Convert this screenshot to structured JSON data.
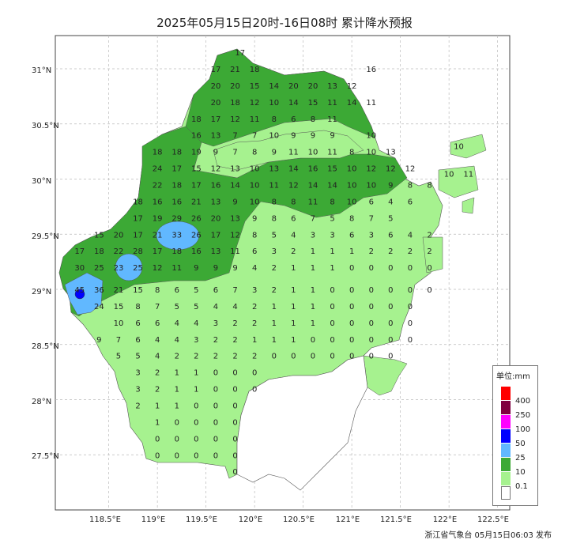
{
  "title": "2025年05月15日20时-16日08时 累计降水预报",
  "footer": "浙江省气象台 05月15日06:03 发布",
  "axes": {
    "y_ticks": [
      "31°N",
      "30.5°N",
      "30°N",
      "29.5°N",
      "29°N",
      "28.5°N",
      "28°N",
      "27.5°N"
    ],
    "x_ticks": [
      "118.5°E",
      "119°E",
      "119.5°E",
      "120°E",
      "120.5°E",
      "121°E",
      "121.5°E",
      "122°E",
      "122.5°E"
    ]
  },
  "legend": {
    "title": "单位:mm",
    "items": [
      {
        "label": "",
        "color": "#ff0000"
      },
      {
        "label": "400",
        "color": "#800040"
      },
      {
        "label": "250",
        "color": "#ff00ff"
      },
      {
        "label": "100",
        "color": "#0000ff"
      },
      {
        "label": "50",
        "color": "#61b8ff"
      },
      {
        "label": "25",
        "color": "#3ca935"
      },
      {
        "label": "10",
        "color": "#a6f28f"
      },
      {
        "label": "0.1",
        "color": "#ffffff"
      }
    ]
  },
  "colors": {
    "light_green": "#a6f28f",
    "green": "#3ca935",
    "light_blue": "#61b8ff",
    "blue": "#0000ff"
  },
  "station_rows": [
    {
      "lat": 31.15,
      "lon_start": 119.85,
      "values": [
        17
      ]
    },
    {
      "lat": 31.0,
      "lon_start": 119.6,
      "values": [
        17,
        21,
        18,
        null,
        null,
        null,
        null,
        null,
        16
      ]
    },
    {
      "lat": 30.85,
      "lon_start": 119.6,
      "values": [
        20,
        20,
        15,
        14,
        20,
        20,
        13,
        12
      ]
    },
    {
      "lat": 30.7,
      "lon_start": 119.6,
      "values": [
        20,
        18,
        12,
        10,
        14,
        15,
        11,
        14,
        11
      ]
    },
    {
      "lat": 30.55,
      "lon_start": 119.4,
      "values": [
        18,
        17,
        12,
        11,
        8,
        6,
        8,
        11
      ]
    },
    {
      "lat": 30.4,
      "lon_start": 119.4,
      "values": [
        16,
        13,
        7,
        7,
        10,
        9,
        9,
        9,
        null,
        10
      ]
    },
    {
      "lat": 30.25,
      "lon_start": 119.0,
      "values": [
        18,
        18,
        19,
        9,
        7,
        8,
        9,
        11,
        10,
        11,
        8,
        10,
        13
      ]
    },
    {
      "lat": 30.1,
      "lon_start": 119.0,
      "values": [
        24,
        17,
        15,
        12,
        13,
        10,
        13,
        14,
        16,
        15,
        10,
        12,
        12,
        12
      ]
    },
    {
      "lat": 29.95,
      "lon_start": 119.0,
      "values": [
        22,
        18,
        17,
        16,
        14,
        10,
        11,
        12,
        14,
        14,
        10,
        10,
        9,
        8,
        8
      ]
    },
    {
      "lat": 29.8,
      "lon_start": 118.8,
      "values": [
        18,
        16,
        16,
        21,
        13,
        9,
        10,
        8,
        8,
        11,
        8,
        10,
        6,
        4,
        6
      ]
    },
    {
      "lat": 29.65,
      "lon_start": 118.8,
      "values": [
        17,
        19,
        29,
        26,
        20,
        13,
        9,
        8,
        6,
        7,
        5,
        8,
        7,
        5
      ]
    },
    {
      "lat": 29.5,
      "lon_start": 118.4,
      "values": [
        15,
        20,
        17,
        21,
        33,
        26,
        17,
        12,
        8,
        5,
        4,
        3,
        3,
        6,
        3,
        6,
        4,
        2
      ]
    },
    {
      "lat": 29.35,
      "lon_start": 118.2,
      "values": [
        17,
        18,
        22,
        28,
        17,
        18,
        16,
        13,
        11,
        6,
        3,
        2,
        1,
        1,
        1,
        2,
        2,
        2,
        2
      ]
    },
    {
      "lat": 29.2,
      "lon_start": 118.2,
      "values": [
        30,
        25,
        23,
        25,
        12,
        11,
        9,
        9,
        9,
        4,
        2,
        1,
        1,
        1,
        0,
        0,
        0,
        0,
        0
      ]
    },
    {
      "lat": 29.0,
      "lon_start": 118.2,
      "values": [
        45,
        36,
        21,
        15,
        8,
        6,
        5,
        6,
        7,
        3,
        2,
        1,
        1,
        0,
        0,
        0,
        0,
        0,
        0
      ]
    },
    {
      "lat": 28.85,
      "lon_start": 118.4,
      "values": [
        24,
        15,
        8,
        7,
        5,
        5,
        4,
        4,
        2,
        1,
        1,
        1,
        0,
        0,
        0,
        0,
        0
      ]
    },
    {
      "lat": 28.7,
      "lon_start": 118.6,
      "values": [
        10,
        6,
        6,
        4,
        4,
        3,
        2,
        2,
        1,
        1,
        1,
        0,
        0,
        0,
        0,
        0
      ]
    },
    {
      "lat": 28.55,
      "lon_start": 118.4,
      "values": [
        9,
        7,
        6,
        4,
        4,
        3,
        2,
        2,
        1,
        1,
        1,
        0,
        0,
        0,
        0,
        0,
        0
      ]
    },
    {
      "lat": 28.4,
      "lon_start": 118.6,
      "values": [
        5,
        5,
        4,
        2,
        2,
        2,
        2,
        2,
        0,
        0,
        0,
        0,
        0,
        0,
        0
      ]
    },
    {
      "lat": 28.25,
      "lon_start": 118.8,
      "values": [
        3,
        2,
        1,
        1,
        0,
        0,
        0
      ]
    },
    {
      "lat": 28.1,
      "lon_start": 118.8,
      "values": [
        3,
        2,
        1,
        1,
        0,
        0,
        0
      ]
    },
    {
      "lat": 27.95,
      "lon_start": 118.8,
      "values": [
        2,
        1,
        1,
        0,
        0,
        0
      ]
    },
    {
      "lat": 27.8,
      "lon_start": 119.0,
      "values": [
        1,
        0,
        0,
        0,
        0
      ]
    },
    {
      "lat": 27.65,
      "lon_start": 119.0,
      "values": [
        0,
        0,
        0,
        0,
        0
      ]
    },
    {
      "lat": 27.5,
      "lon_start": 119.0,
      "values": [
        0,
        0,
        0,
        0,
        0
      ]
    },
    {
      "lat": 27.35,
      "lon_start": 119.8,
      "values": [
        0
      ]
    },
    {
      "lat": 30.3,
      "lon_start": 122.1,
      "values": [
        10
      ]
    },
    {
      "lat": 30.05,
      "lon_start": 122.0,
      "values": [
        10,
        11
      ]
    }
  ]
}
